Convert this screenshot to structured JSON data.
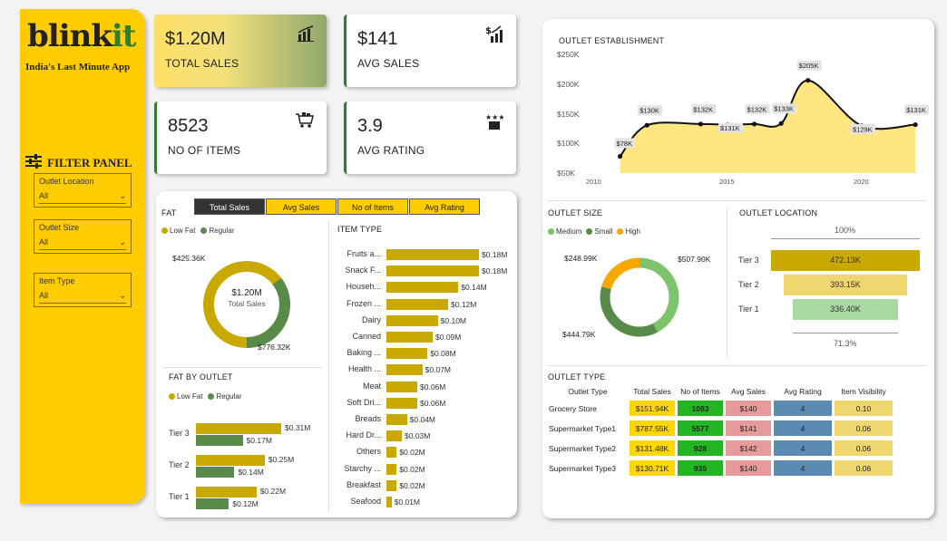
{
  "brand": {
    "logo_main": "blink",
    "logo_accent": "it",
    "tagline": "India's Last Minute App"
  },
  "filter_panel": {
    "title": "FILTER PANEL",
    "slicers": [
      {
        "label": "Outlet Location",
        "value": "All"
      },
      {
        "label": "Outlet Size",
        "value": "All"
      },
      {
        "label": "Item Type",
        "value": "All"
      }
    ]
  },
  "kpis": [
    {
      "value": "$1.20M",
      "label": "TOTAL SALES",
      "icon": "sales-chart-icon"
    },
    {
      "value": "$141",
      "label": "AVG SALES",
      "icon": "dollar-bars-icon"
    },
    {
      "value": "8523",
      "label": "NO OF ITEMS",
      "icon": "cart-icon"
    },
    {
      "value": "3.9",
      "label": "AVG RATING",
      "icon": "stars-box-icon"
    }
  ],
  "tabs": [
    "Total Sales",
    "Avg Sales",
    "No of Items",
    "Avg Rating"
  ],
  "colors": {
    "yellow": "#ffcc00",
    "gold": "#c9a800",
    "green": "#5a8a4a",
    "brand_green": "#2e7d32",
    "orange": "#f5a800",
    "light_green": "#7cc36b"
  },
  "fat": {
    "title": "FAT",
    "legend": [
      "Low Fat",
      "Regular"
    ],
    "center_value": "$1.20M",
    "center_label": "Total Sales",
    "regular_label": "$425.36K",
    "lowfat_label": "$776.32K"
  },
  "fat_by_outlet": {
    "title": "FAT BY OUTLET",
    "legend": [
      "Low Fat",
      "Regular"
    ],
    "rows": [
      {
        "tier": "Tier 3",
        "low": "$0.31M",
        "reg": "$0.17M"
      },
      {
        "tier": "Tier 2",
        "low": "$0.25M",
        "reg": "$0.14M"
      },
      {
        "tier": "Tier 1",
        "low": "$0.22M",
        "reg": "$0.12M"
      }
    ]
  },
  "item_type": {
    "title": "ITEM TYPE",
    "rows": [
      {
        "label": "Fruits a...",
        "value": "$0.18M"
      },
      {
        "label": "Snack F...",
        "value": "$0.18M"
      },
      {
        "label": "Househ...",
        "value": "$0.14M"
      },
      {
        "label": "Frozen ...",
        "value": "$0.12M"
      },
      {
        "label": "Dairy",
        "value": "$0.10M"
      },
      {
        "label": "Canned",
        "value": "$0.09M"
      },
      {
        "label": "Baking ...",
        "value": "$0.08M"
      },
      {
        "label": "Health ...",
        "value": "$0.07M"
      },
      {
        "label": "Meat",
        "value": "$0.06M"
      },
      {
        "label": "Soft Dri...",
        "value": "$0.06M"
      },
      {
        "label": "Breads",
        "value": "$0.04M"
      },
      {
        "label": "Hard Dr...",
        "value": "$0.03M"
      },
      {
        "label": "Others",
        "value": "$0.02M"
      },
      {
        "label": "Starchy ...",
        "value": "$0.02M"
      },
      {
        "label": "Breakfast",
        "value": "$0.02M"
      },
      {
        "label": "Seafood",
        "value": "$0.01M"
      }
    ]
  },
  "outlet_establishment": {
    "title": "OUTLET ESTABLISHMENT",
    "y_ticks": [
      "$250K",
      "$200K",
      "$150K",
      "$100K",
      "$50K"
    ],
    "x_ticks": [
      "2010",
      "2015",
      "2020"
    ],
    "point_labels": [
      "$78K",
      "$130K",
      "$132K",
      "$131K",
      "$132K",
      "$133K",
      "$205K",
      "$129K",
      "$131K"
    ]
  },
  "outlet_size": {
    "title": "OUTLET SIZE",
    "legend": [
      "Medium",
      "Small",
      "High"
    ],
    "medium_label": "$507.90K",
    "small_label": "$444.79K",
    "high_label": "$248.99K"
  },
  "outlet_location": {
    "title": "OUTLET LOCATION",
    "top_pct": "100%",
    "bottom_pct": "71.3%",
    "rows": [
      {
        "tier": "Tier 3",
        "value": "472.13K"
      },
      {
        "tier": "Tier 2",
        "value": "393.15K"
      },
      {
        "tier": "Tier 1",
        "value": "336.40K"
      }
    ]
  },
  "outlet_type": {
    "title": "OUTLET TYPE",
    "headers": [
      "Outlet Type",
      "Total Sales",
      "No of Items",
      "Avg Sales",
      "Avg Rating",
      "Item Visibility"
    ],
    "rows": [
      {
        "type": "Grocery Store",
        "sales": "$151.94K",
        "items": "1083",
        "avg": "$140",
        "rating": "4",
        "vis": "0.10"
      },
      {
        "type": "Supermarket Type1",
        "sales": "$787.55K",
        "items": "5577",
        "avg": "$141",
        "rating": "4",
        "vis": "0.06"
      },
      {
        "type": "Supermarket Type2",
        "sales": "$131.48K",
        "items": "928",
        "avg": "$142",
        "rating": "4",
        "vis": "0.06"
      },
      {
        "type": "Supermarket Type3",
        "sales": "$130.71K",
        "items": "935",
        "avg": "$140",
        "rating": "4",
        "vis": "0.06"
      }
    ]
  },
  "chart_data": [
    {
      "type": "pie",
      "title": "FAT",
      "categories": [
        "Low Fat",
        "Regular"
      ],
      "values": [
        776.32,
        425.36
      ],
      "unit": "K$"
    },
    {
      "type": "bar",
      "title": "FAT BY OUTLET",
      "categories": [
        "Tier 3",
        "Tier 2",
        "Tier 1"
      ],
      "series": [
        {
          "name": "Low Fat",
          "values": [
            0.31,
            0.25,
            0.22
          ]
        },
        {
          "name": "Regular",
          "values": [
            0.17,
            0.14,
            0.12
          ]
        }
      ],
      "unit": "M$"
    },
    {
      "type": "bar",
      "title": "ITEM TYPE",
      "categories": [
        "Fruits a...",
        "Snack F...",
        "Househ...",
        "Frozen ...",
        "Dairy",
        "Canned",
        "Baking ...",
        "Health ...",
        "Meat",
        "Soft Dri...",
        "Breads",
        "Hard Dr...",
        "Others",
        "Starchy ...",
        "Breakfast",
        "Seafood"
      ],
      "values": [
        0.18,
        0.18,
        0.14,
        0.12,
        0.1,
        0.09,
        0.08,
        0.07,
        0.06,
        0.06,
        0.04,
        0.03,
        0.02,
        0.02,
        0.02,
        0.01
      ],
      "unit": "M$"
    },
    {
      "type": "area",
      "title": "OUTLET ESTABLISHMENT",
      "x": [
        2011,
        2012,
        2014,
        2015,
        2016,
        2017,
        2018,
        2020,
        2022
      ],
      "values": [
        78,
        130,
        132,
        131,
        132,
        133,
        205,
        129,
        131
      ],
      "unit": "K$",
      "ylim": [
        50,
        250
      ]
    },
    {
      "type": "pie",
      "title": "OUTLET SIZE",
      "categories": [
        "Medium",
        "Small",
        "High"
      ],
      "values": [
        507.9,
        444.79,
        248.99
      ],
      "unit": "K$"
    },
    {
      "type": "bar",
      "title": "OUTLET LOCATION",
      "categories": [
        "Tier 3",
        "Tier 2",
        "Tier 1"
      ],
      "values": [
        472.13,
        393.15,
        336.4
      ],
      "unit": "K$"
    }
  ]
}
